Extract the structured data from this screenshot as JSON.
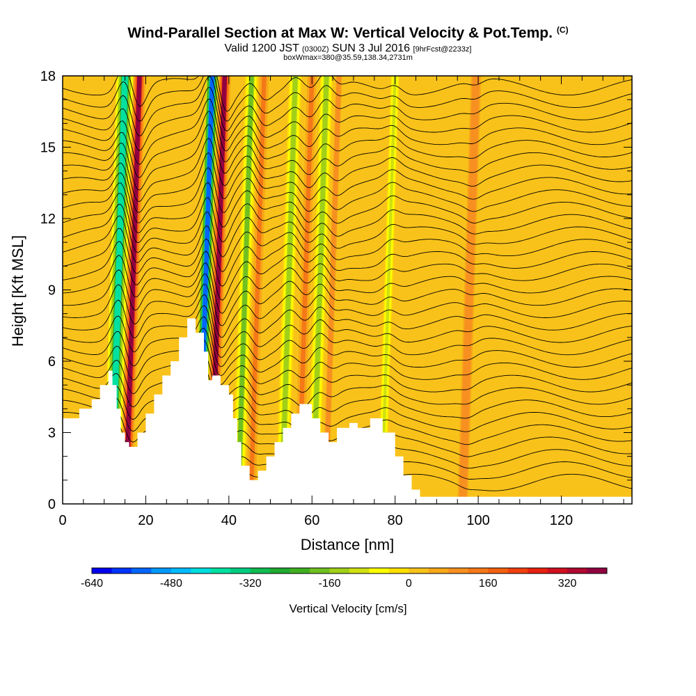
{
  "header": {
    "title": "Wind-Parallel Section at Max W: Vertical Velocity & Pot.Temp.",
    "copyright": "(C)",
    "valid_main": "Valid 1200 JST",
    "valid_utc": "(0300Z)",
    "valid_date": "SUN 3 Jul 2016",
    "forecast": "[9hrFcst@2233z]",
    "box_info": "boxWmax=380@35.59,138.34,2731m"
  },
  "colors": {
    "terrain": "#ffffff",
    "contour": "#000000",
    "background_field": "#f9c21a"
  },
  "chart_data": {
    "type": "heatmap",
    "xlabel": "Distance [nm]",
    "ylabel": "Height [Kft MSL]",
    "xlim": [
      0,
      137
    ],
    "ylim": [
      0,
      18
    ],
    "x_ticks": [
      "0",
      "20",
      "40",
      "60",
      "80",
      "100",
      "120"
    ],
    "x_tick_values": [
      0,
      20,
      40,
      60,
      80,
      100,
      120
    ],
    "y_ticks": [
      "0",
      "3",
      "6",
      "9",
      "12",
      "15",
      "18"
    ],
    "y_tick_values": [
      0,
      3,
      6,
      9,
      12,
      15,
      18
    ],
    "grid": false,
    "terrain_profile": {
      "x": [
        0,
        4,
        4,
        7,
        7,
        9,
        9,
        11,
        11,
        12,
        12,
        13,
        13,
        14,
        14,
        15,
        15,
        16,
        16,
        18,
        18,
        20,
        20,
        22,
        22,
        24,
        24,
        26,
        26,
        28,
        28,
        30,
        30,
        32,
        32,
        34,
        34,
        35,
        35,
        36,
        36,
        38,
        38,
        40,
        40,
        41,
        41,
        42,
        42,
        43,
        43,
        45,
        45,
        47,
        47,
        49,
        49,
        51,
        51,
        53,
        53,
        55,
        55,
        57,
        57,
        60,
        60,
        62,
        62,
        64,
        64,
        66,
        66,
        69,
        69,
        71,
        71,
        74,
        74,
        77,
        77,
        80,
        80,
        82,
        82,
        84,
        84,
        86,
        86,
        100,
        100,
        110,
        110,
        120,
        120,
        130,
        130,
        137
      ],
      "height_kft": [
        3.6,
        3.6,
        4.0,
        4.0,
        4.4,
        4.4,
        5.0,
        5.0,
        5.6,
        5.6,
        5.0,
        5.0,
        4.0,
        4.0,
        3.0,
        3.0,
        2.6,
        2.6,
        2.4,
        2.4,
        3.0,
        3.0,
        3.8,
        3.8,
        4.6,
        4.6,
        5.4,
        5.4,
        6.0,
        6.0,
        7.0,
        7.0,
        7.8,
        7.8,
        7.2,
        7.2,
        6.4,
        6.4,
        5.2,
        5.2,
        5.4,
        5.4,
        5.0,
        5.0,
        4.6,
        4.6,
        3.6,
        3.6,
        2.6,
        2.6,
        1.6,
        1.6,
        1.0,
        1.0,
        1.4,
        1.4,
        2.0,
        2.0,
        2.6,
        2.6,
        3.2,
        3.2,
        3.8,
        3.8,
        4.2,
        4.2,
        3.6,
        3.6,
        3.0,
        3.0,
        2.6,
        2.6,
        3.2,
        3.2,
        3.4,
        3.4,
        3.2,
        3.2,
        3.6,
        3.6,
        3.0,
        3.0,
        2.0,
        2.0,
        1.2,
        1.2,
        0.6,
        0.6,
        0.3,
        0.3,
        0.3,
        0.3,
        0.3,
        0.3,
        0.3,
        0.3,
        0.3,
        0.3
      ]
    },
    "vertical_velocity_bands": [
      {
        "x_nm": 12.5,
        "value_cm_s": -400,
        "width_nm": 4
      },
      {
        "x_nm": 16.0,
        "value_cm_s": 360,
        "width_nm": 3
      },
      {
        "x_nm": 33.5,
        "value_cm_s": -560,
        "width_nm": 3
      },
      {
        "x_nm": 36.5,
        "value_cm_s": 400,
        "width_nm": 3
      },
      {
        "x_nm": 43.0,
        "value_cm_s": -200,
        "width_nm": 3
      },
      {
        "x_nm": 46.0,
        "value_cm_s": 120,
        "width_nm": 3
      },
      {
        "x_nm": 53.5,
        "value_cm_s": -140,
        "width_nm": 3
      },
      {
        "x_nm": 57.5,
        "value_cm_s": 120,
        "width_nm": 3
      },
      {
        "x_nm": 61.0,
        "value_cm_s": -140,
        "width_nm": 3
      },
      {
        "x_nm": 64.0,
        "value_cm_s": 100,
        "width_nm": 3
      },
      {
        "x_nm": 77.5,
        "value_cm_s": -120,
        "width_nm": 2
      },
      {
        "x_nm": 97.0,
        "value_cm_s": 80,
        "width_nm": 5
      }
    ],
    "potential_temperature_contours": {
      "count": 33,
      "base_height_kft": 0.9,
      "spacing_kft": 0.52
    },
    "colorbar": {
      "title": "Vertical Velocity [cm/s]",
      "min": -640,
      "max": 400,
      "step": 40,
      "labels": [
        "-640",
        "-480",
        "-320",
        "-160",
        "0",
        "160",
        "320"
      ],
      "label_values": [
        -640,
        -480,
        -320,
        -160,
        0,
        160,
        320
      ],
      "colors": [
        "#0000ee",
        "#0033ff",
        "#0066ff",
        "#0099ff",
        "#00bbff",
        "#00dddd",
        "#00e0a0",
        "#00cc80",
        "#10bb50",
        "#20aa30",
        "#40b020",
        "#70c020",
        "#a0d018",
        "#d0e010",
        "#ffff00",
        "#ffe000",
        "#f9c21a",
        "#f8a818",
        "#f79020",
        "#f57818",
        "#f26010",
        "#f04010",
        "#e82010",
        "#d01020",
        "#b00830",
        "#900040"
      ]
    }
  }
}
